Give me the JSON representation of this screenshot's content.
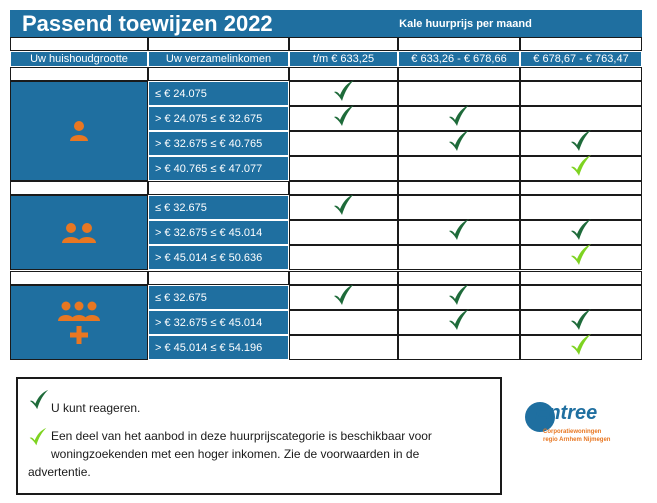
{
  "title": "Passend toewijzen 2022",
  "rent_header": "Kale huurprijs per maand",
  "columns": {
    "household": "Uw huishoudgrootte",
    "income": "Uw verzamelinkomen",
    "rent1": "t/m € 633,25",
    "rent2": "€ 633,26 - € 678,66",
    "rent3": "€ 678,67 - € 763,47"
  },
  "groups": [
    {
      "household_icon": "single-person-icon",
      "rows": [
        {
          "income": "≤ € 24.075",
          "checks": [
            "dark",
            "",
            ""
          ]
        },
        {
          "income": "> € 24.075 ≤ € 32.675",
          "checks": [
            "dark",
            "dark",
            ""
          ]
        },
        {
          "income": "> € 32.675 ≤ € 40.765",
          "checks": [
            "",
            "dark",
            "dark"
          ]
        },
        {
          "income": "> € 40.765 ≤ € 47.077",
          "checks": [
            "",
            "",
            "light"
          ]
        }
      ]
    },
    {
      "household_icon": "two-persons-icon",
      "rows": [
        {
          "income": "≤ € 32.675",
          "checks": [
            "dark",
            "",
            ""
          ]
        },
        {
          "income": "> € 32.675 ≤ € 45.014",
          "checks": [
            "",
            "dark",
            "dark"
          ]
        },
        {
          "income": "> € 45.014 ≤ € 50.636",
          "checks": [
            "",
            "",
            "light"
          ]
        }
      ]
    },
    {
      "household_icon": "three-plus-persons-icon",
      "rows": [
        {
          "income": "≤ € 32.675",
          "checks": [
            "dark",
            "dark",
            ""
          ]
        },
        {
          "income": "> € 32.675 ≤ € 45.014",
          "checks": [
            "",
            "dark",
            "dark"
          ]
        },
        {
          "income": "> € 45.014 ≤ € 54.196",
          "checks": [
            "",
            "",
            "light"
          ]
        }
      ]
    }
  ],
  "legend": {
    "dark_text": "U kunt reageren.",
    "light_text": "Een deel van het aanbod in deze huurprijscategorie is beschikbaar voor woningzoekenden met een hoger inkomen. Zie de voorwaarden in de advertentie."
  },
  "logo": {
    "name": "Entree",
    "tagline_line1": "Corporatiewoningen",
    "tagline_line2": "regio Arnhem Nijmegen"
  },
  "colors": {
    "blue": "#1f6fa0",
    "orange": "#e87722",
    "check_dark": "#1e6b3a",
    "check_light": "#7ed321"
  }
}
